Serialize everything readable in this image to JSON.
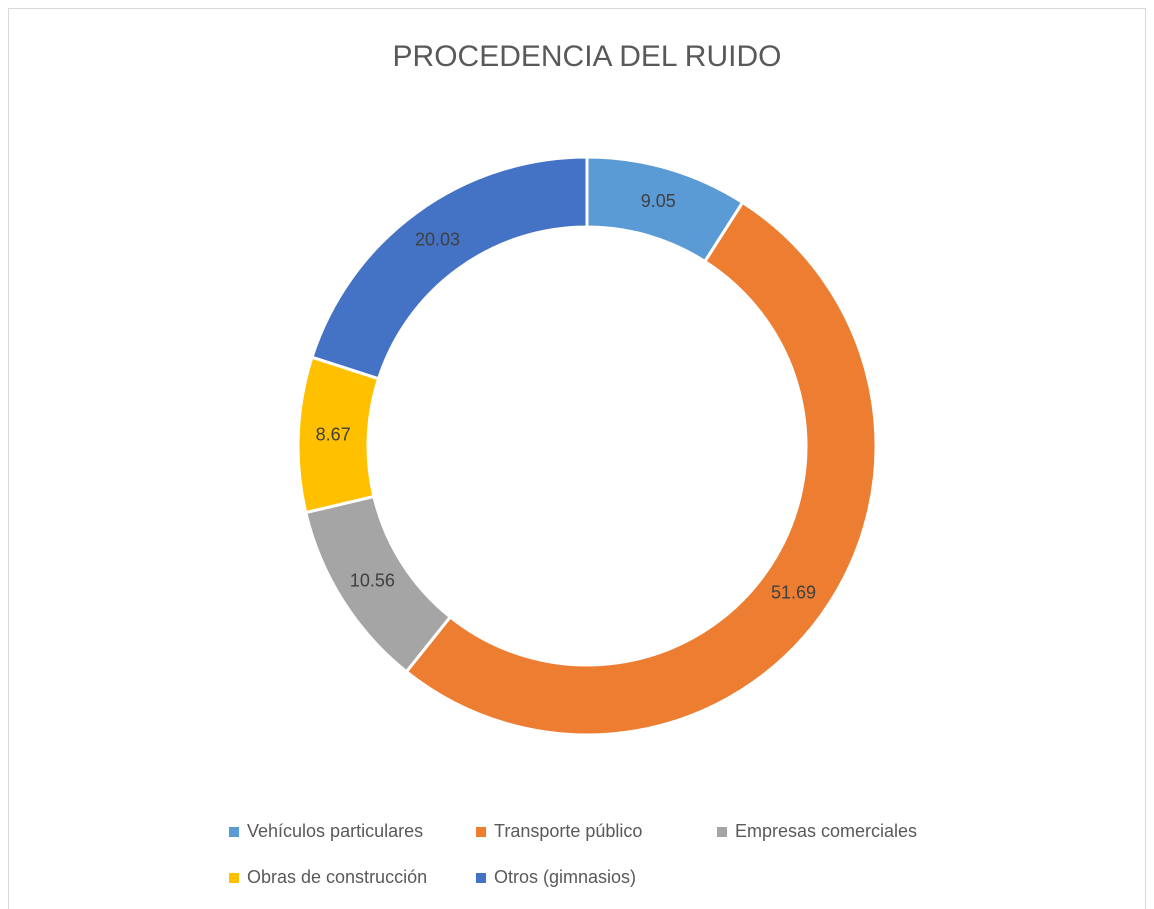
{
  "chart_data": {
    "type": "donut",
    "title": "PROCEDENCIA DEL RUIDO",
    "categories": [
      "Vehículos particulares",
      "Transporte público",
      "Empresas comerciales",
      "Obras de construcción",
      "Otros (gimnasios)"
    ],
    "values": [
      9.05,
      51.69,
      10.56,
      8.67,
      20.03
    ],
    "colors": [
      "#5b9bd5",
      "#ed7d31",
      "#a5a5a5",
      "#ffc000",
      "#4472c4"
    ],
    "legend": "bottom"
  }
}
